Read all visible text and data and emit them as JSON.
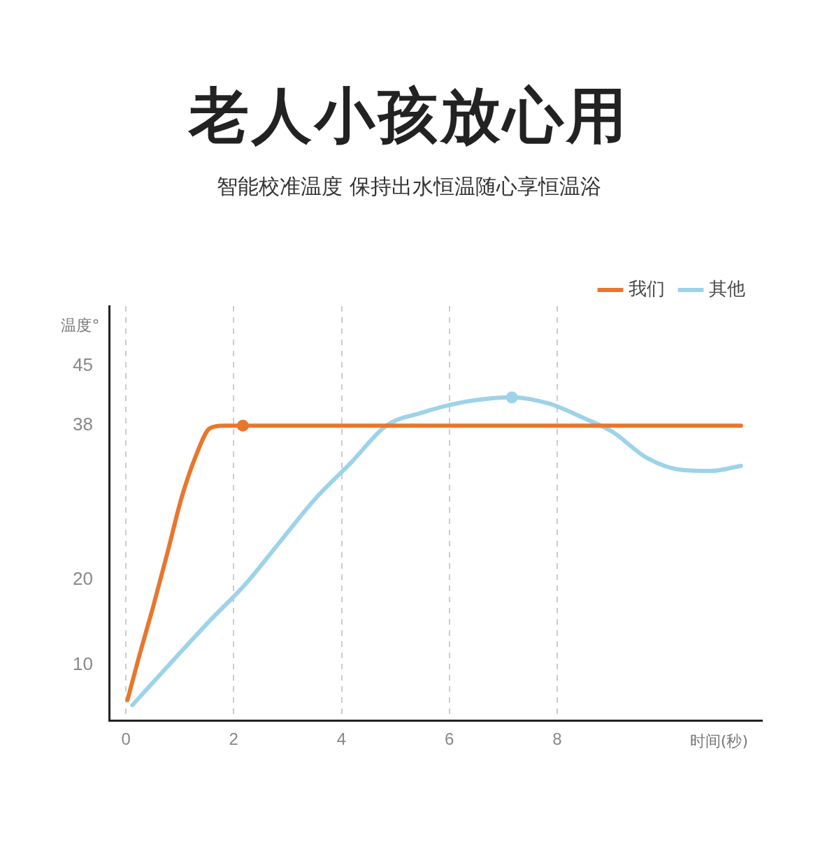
{
  "chart_data": {
    "type": "line",
    "title": "老人小孩放心用",
    "subtitle": "智能校准温度 保持出水恒温随心享恒温浴",
    "xlabel": "时间(秒)",
    "ylabel": "温度°",
    "xlim": [
      -0.3,
      11.8
    ],
    "xticks": [
      0,
      2,
      4,
      6,
      8
    ],
    "ylim": [
      3.5,
      52
    ],
    "yticks": [
      10,
      20,
      38,
      45
    ],
    "grid": "x",
    "legend": "top right",
    "line_style": "solid",
    "series": [
      {
        "name": "我们",
        "color": "#e8772e",
        "x": [
          0.03,
          0.25,
          0.51,
          0.77,
          1.03,
          1.3,
          1.56,
          1.82,
          2.17,
          11.41
        ],
        "values": [
          5.9,
          11.1,
          16.9,
          23.1,
          29.5,
          34.5,
          37.7,
          38,
          38,
          38
        ]
      },
      {
        "name": "其他",
        "color": "#9dd3ea",
        "x": [
          0.12,
          0.9,
          1.56,
          2.21,
          2.87,
          3.52,
          4.18,
          4.83,
          5.48,
          6.14,
          6.79,
          7.16,
          7.84,
          8.49,
          9.02,
          9.67,
          10.33,
          10.85,
          11.41
        ],
        "values": [
          5.3,
          10.7,
          15.2,
          19.4,
          24.5,
          29.5,
          33.7,
          38,
          39.5,
          40.6,
          41.2,
          41.3,
          40.6,
          38.9,
          37.3,
          34.2,
          32.8,
          32.7,
          33.3
        ]
      },
      {
        "type": "scatter",
        "color": "#e8772e",
        "x": [
          2.17
        ],
        "values": [
          38
        ]
      },
      {
        "type": "scatter",
        "color": "#9dd3ea",
        "x": [
          7.16
        ],
        "values": [
          41.3
        ]
      }
    ]
  }
}
